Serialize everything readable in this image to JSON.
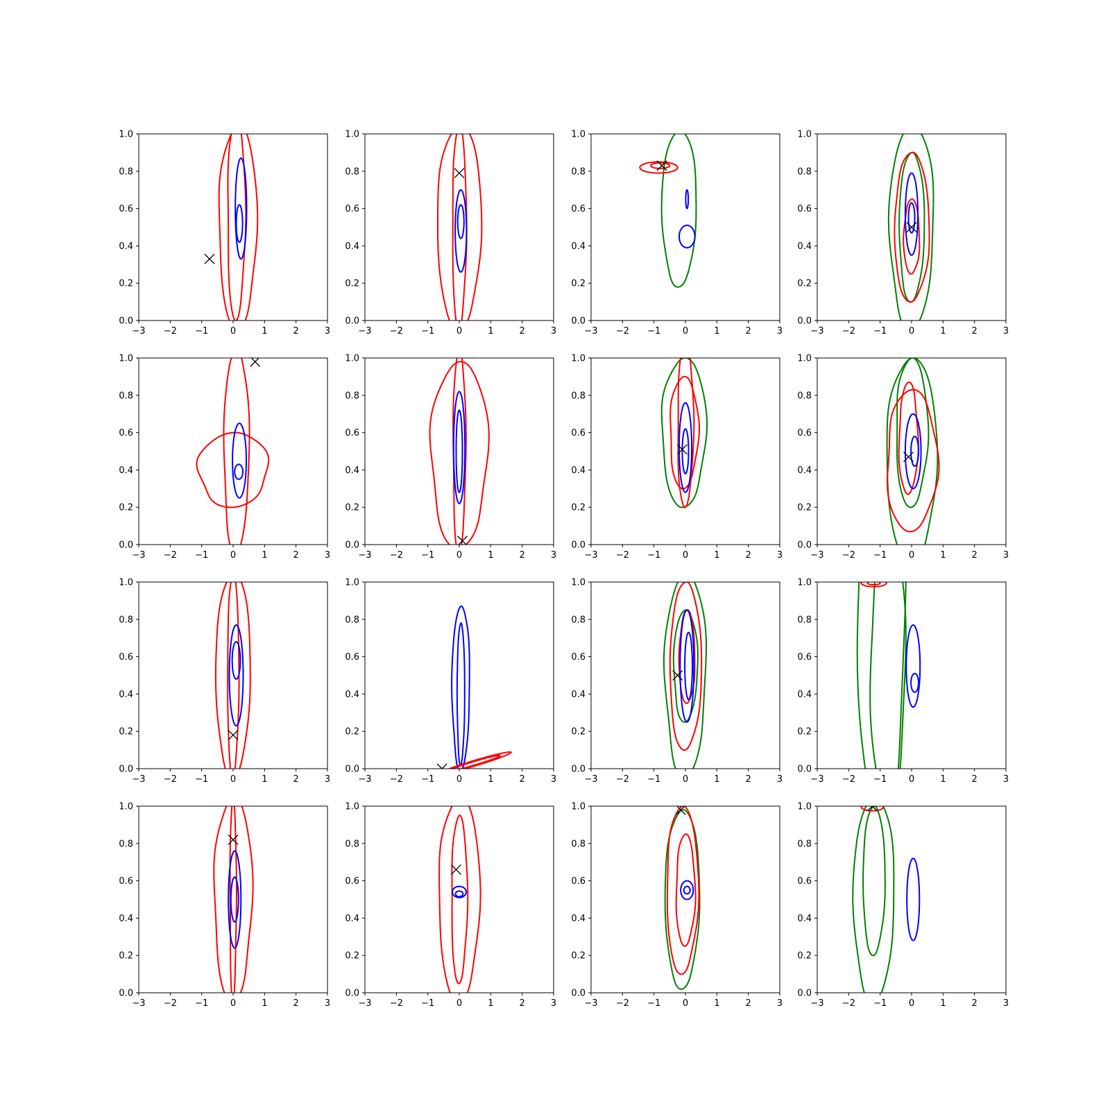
{
  "chart_data": {
    "type": "contour-grid",
    "rows": 4,
    "cols": 4,
    "shared_axes": {
      "xlim": [
        -3,
        3
      ],
      "ylim": [
        0,
        1.0
      ],
      "xticks": [
        -3,
        -2,
        -1,
        0,
        1,
        2,
        3
      ],
      "xtick_labels": [
        "−3",
        "−2",
        "−1",
        "0",
        "1",
        "2",
        "3"
      ],
      "yticks": [
        0,
        0.2,
        0.4,
        0.6,
        0.8,
        1.0
      ],
      "ytick_labels": [
        "0.0",
        "0.2",
        "0.4",
        "0.6",
        "0.8",
        "1.0"
      ]
    },
    "colors": {
      "blue": "#0000ff",
      "red": "#ff0000",
      "green": "#008000",
      "marker": "#000000"
    },
    "panels": [
      {
        "id": "r1c1",
        "marker": {
          "x": -0.75,
          "y": 0.33
        },
        "contours": [
          {
            "color": "red",
            "shape": "blob",
            "cx": 0.15,
            "cy": 0.5,
            "rx": 0.6,
            "ry": 0.55
          },
          {
            "color": "red",
            "shape": "blob",
            "cx": 0.1,
            "cy": 0.55,
            "rx": 0.28,
            "ry": 0.55
          },
          {
            "color": "blue",
            "shape": "ellipse",
            "cx": 0.25,
            "cy": 0.6,
            "rx": 0.18,
            "ry": 0.27
          },
          {
            "color": "blue",
            "shape": "ellipse",
            "cx": 0.2,
            "cy": 0.52,
            "rx": 0.1,
            "ry": 0.1
          }
        ]
      },
      {
        "id": "r1c2",
        "marker": {
          "x": 0.0,
          "y": 0.79
        },
        "contours": [
          {
            "color": "red",
            "shape": "blob",
            "cx": 0.0,
            "cy": 0.5,
            "rx": 0.7,
            "ry": 0.55
          },
          {
            "color": "red",
            "shape": "blob",
            "cx": 0.0,
            "cy": 0.5,
            "rx": 0.22,
            "ry": 0.55
          },
          {
            "color": "blue",
            "shape": "ellipse",
            "cx": 0.05,
            "cy": 0.48,
            "rx": 0.18,
            "ry": 0.22
          },
          {
            "color": "blue",
            "shape": "ellipse",
            "cx": 0.05,
            "cy": 0.53,
            "rx": 0.1,
            "ry": 0.09
          }
        ]
      },
      {
        "id": "r1c3",
        "marker": {
          "x": -0.75,
          "y": 0.83
        },
        "contours": [
          {
            "color": "green",
            "shape": "blob",
            "cx": -0.2,
            "cy": 0.6,
            "rx": 0.55,
            "ry": 0.42
          },
          {
            "color": "red",
            "shape": "ellipse",
            "cx": -0.85,
            "cy": 0.82,
            "rx": 0.6,
            "ry": 0.03
          },
          {
            "color": "red",
            "shape": "ellipse",
            "cx": -0.8,
            "cy": 0.83,
            "rx": 0.3,
            "ry": 0.015
          },
          {
            "color": "blue",
            "shape": "ellipse",
            "cx": 0.05,
            "cy": 0.45,
            "rx": 0.25,
            "ry": 0.06
          },
          {
            "color": "blue",
            "shape": "ellipse",
            "cx": 0.05,
            "cy": 0.65,
            "rx": 0.04,
            "ry": 0.05
          }
        ]
      },
      {
        "id": "r1c4",
        "marker": {
          "x": 0.0,
          "y": 0.5
        },
        "contours": [
          {
            "color": "green",
            "shape": "blob",
            "cx": 0.0,
            "cy": 0.5,
            "rx": 0.7,
            "ry": 0.55
          },
          {
            "color": "green",
            "shape": "blob",
            "cx": 0.0,
            "cy": 0.5,
            "rx": 0.4,
            "ry": 0.4
          },
          {
            "color": "red",
            "shape": "blob",
            "cx": 0.0,
            "cy": 0.5,
            "rx": 0.55,
            "ry": 0.4
          },
          {
            "color": "red",
            "shape": "blob",
            "cx": 0.0,
            "cy": 0.45,
            "rx": 0.25,
            "ry": 0.2
          },
          {
            "color": "blue",
            "shape": "ellipse",
            "cx": 0.0,
            "cy": 0.57,
            "rx": 0.2,
            "ry": 0.22
          },
          {
            "color": "blue",
            "shape": "ellipse",
            "cx": 0.0,
            "cy": 0.55,
            "rx": 0.1,
            "ry": 0.08
          }
        ]
      },
      {
        "id": "r2c1",
        "marker": {
          "x": 0.7,
          "y": 0.98
        },
        "contours": [
          {
            "color": "red",
            "shape": "blob",
            "cx": 0.0,
            "cy": 0.4,
            "rx": 1.1,
            "ry": 0.2
          },
          {
            "color": "red",
            "shape": "blob",
            "cx": 0.1,
            "cy": 0.5,
            "rx": 0.4,
            "ry": 0.55
          },
          {
            "color": "blue",
            "shape": "ellipse",
            "cx": 0.2,
            "cy": 0.45,
            "rx": 0.22,
            "ry": 0.2
          },
          {
            "color": "blue",
            "shape": "ellipse",
            "cx": 0.18,
            "cy": 0.39,
            "rx": 0.13,
            "ry": 0.04
          }
        ]
      },
      {
        "id": "r2c2",
        "marker": {
          "x": 0.1,
          "y": 0.02
        },
        "contours": [
          {
            "color": "red",
            "shape": "blob",
            "cx": 0.0,
            "cy": 0.48,
            "rx": 0.9,
            "ry": 0.5
          },
          {
            "color": "red",
            "shape": "blob",
            "cx": 0.0,
            "cy": 0.5,
            "rx": 0.2,
            "ry": 0.55
          },
          {
            "color": "blue",
            "shape": "ellipse",
            "cx": 0.0,
            "cy": 0.52,
            "rx": 0.18,
            "ry": 0.3
          },
          {
            "color": "blue",
            "shape": "ellipse",
            "cx": 0.0,
            "cy": 0.5,
            "rx": 0.1,
            "ry": 0.22
          }
        ]
      },
      {
        "id": "r2c3",
        "marker": {
          "x": -0.1,
          "y": 0.51
        },
        "contours": [
          {
            "color": "green",
            "shape": "blob",
            "cx": -0.05,
            "cy": 0.6,
            "rx": 0.7,
            "ry": 0.4
          },
          {
            "color": "red",
            "shape": "blob",
            "cx": -0.05,
            "cy": 0.6,
            "rx": 0.45,
            "ry": 0.3
          },
          {
            "color": "red",
            "shape": "blob",
            "cx": 0.0,
            "cy": 0.65,
            "rx": 0.25,
            "ry": 0.45
          },
          {
            "color": "blue",
            "shape": "ellipse",
            "cx": 0.0,
            "cy": 0.52,
            "rx": 0.2,
            "ry": 0.24
          },
          {
            "color": "blue",
            "shape": "ellipse",
            "cx": 0.0,
            "cy": 0.5,
            "rx": 0.1,
            "ry": 0.12
          }
        ]
      },
      {
        "id": "r2c4",
        "marker": {
          "x": -0.1,
          "y": 0.47
        },
        "contours": [
          {
            "color": "green",
            "shape": "blob",
            "cx": 0.0,
            "cy": 0.45,
            "rx": 0.8,
            "ry": 0.55
          },
          {
            "color": "green",
            "shape": "blob",
            "cx": 0.0,
            "cy": 0.6,
            "rx": 0.5,
            "ry": 0.4
          },
          {
            "color": "red",
            "shape": "blob",
            "cx": 0.0,
            "cy": 0.45,
            "rx": 0.8,
            "ry": 0.38
          },
          {
            "color": "red",
            "shape": "blob",
            "cx": -0.1,
            "cy": 0.57,
            "rx": 0.3,
            "ry": 0.3
          },
          {
            "color": "blue",
            "shape": "ellipse",
            "cx": 0.05,
            "cy": 0.5,
            "rx": 0.25,
            "ry": 0.2
          },
          {
            "color": "blue",
            "shape": "ellipse",
            "cx": 0.1,
            "cy": 0.5,
            "rx": 0.12,
            "ry": 0.08
          }
        ]
      },
      {
        "id": "r3c1",
        "marker": {
          "x": 0.0,
          "y": 0.18
        },
        "contours": [
          {
            "color": "red",
            "shape": "blob",
            "cx": 0.0,
            "cy": 0.5,
            "rx": 0.55,
            "ry": 0.55
          },
          {
            "color": "red",
            "shape": "blob",
            "cx": 0.0,
            "cy": 0.5,
            "rx": 0.18,
            "ry": 0.55
          },
          {
            "color": "blue",
            "shape": "ellipse",
            "cx": 0.1,
            "cy": 0.5,
            "rx": 0.22,
            "ry": 0.27
          },
          {
            "color": "blue",
            "shape": "ellipse",
            "cx": 0.1,
            "cy": 0.58,
            "rx": 0.13,
            "ry": 0.1
          }
        ]
      },
      {
        "id": "r3c2",
        "marker": {
          "x": -0.55,
          "y": 0.0
        },
        "contours": [
          {
            "color": "blue",
            "shape": "blob",
            "cx": 0.05,
            "cy": 0.43,
            "rx": 0.28,
            "ry": 0.44
          },
          {
            "color": "blue",
            "shape": "blob",
            "cx": 0.05,
            "cy": 0.4,
            "rx": 0.12,
            "ry": 0.38
          },
          {
            "color": "red",
            "shape": "tilted",
            "cx": 0.5,
            "cy": 0.03,
            "rx": 1.15,
            "ry": 0.015,
            "tilt": -0.05
          },
          {
            "color": "red",
            "shape": "tilted",
            "cx": 0.5,
            "cy": 0.03,
            "rx": 0.8,
            "ry": 0.01,
            "tilt": -0.05
          }
        ]
      },
      {
        "id": "r3c3",
        "marker": {
          "x": -0.25,
          "y": 0.5
        },
        "contours": [
          {
            "color": "green",
            "shape": "blob",
            "cx": 0.0,
            "cy": 0.5,
            "rx": 0.65,
            "ry": 0.55
          },
          {
            "color": "green",
            "shape": "blob",
            "cx": 0.0,
            "cy": 0.55,
            "rx": 0.38,
            "ry": 0.3
          },
          {
            "color": "red",
            "shape": "blob",
            "cx": 0.0,
            "cy": 0.55,
            "rx": 0.5,
            "ry": 0.45
          },
          {
            "color": "red",
            "shape": "blob",
            "cx": 0.05,
            "cy": 0.6,
            "rx": 0.25,
            "ry": 0.25
          },
          {
            "color": "blue",
            "shape": "ellipse",
            "cx": 0.05,
            "cy": 0.55,
            "rx": 0.22,
            "ry": 0.3
          },
          {
            "color": "blue",
            "shape": "ellipse",
            "cx": 0.1,
            "cy": 0.55,
            "rx": 0.12,
            "ry": 0.18
          }
        ]
      },
      {
        "id": "r3c4",
        "marker": null,
        "contours": [
          {
            "color": "green",
            "shape": "arch",
            "cx": -0.95,
            "cy": 0.87,
            "rx": 0.75,
            "ry": 0.87
          },
          {
            "color": "green",
            "shape": "arch",
            "cx": -0.75,
            "cy": 0.55,
            "rx": 0.55,
            "ry": 0.55
          },
          {
            "color": "red",
            "shape": "ellipse",
            "cx": -1.2,
            "cy": 0.995,
            "rx": 0.4,
            "ry": 0.02
          },
          {
            "color": "red",
            "shape": "ellipse",
            "cx": -1.2,
            "cy": 0.995,
            "rx": 0.2,
            "ry": 0.01
          },
          {
            "color": "blue",
            "shape": "ellipse",
            "cx": 0.05,
            "cy": 0.55,
            "rx": 0.22,
            "ry": 0.22
          },
          {
            "color": "blue",
            "shape": "ellipse",
            "cx": 0.1,
            "cy": 0.46,
            "rx": 0.12,
            "ry": 0.05
          }
        ]
      },
      {
        "id": "r4c1",
        "marker": {
          "x": 0.0,
          "y": 0.82
        },
        "contours": [
          {
            "color": "red",
            "shape": "blob",
            "cx": 0.0,
            "cy": 0.5,
            "rx": 0.6,
            "ry": 0.55
          },
          {
            "color": "red",
            "shape": "blob",
            "cx": 0.0,
            "cy": 0.5,
            "rx": 0.1,
            "ry": 0.55
          },
          {
            "color": "blue",
            "shape": "ellipse",
            "cx": 0.05,
            "cy": 0.5,
            "rx": 0.2,
            "ry": 0.26
          },
          {
            "color": "blue",
            "shape": "ellipse",
            "cx": 0.05,
            "cy": 0.5,
            "rx": 0.12,
            "ry": 0.12
          }
        ]
      },
      {
        "id": "r4c2",
        "marker": {
          "x": -0.1,
          "y": 0.66
        },
        "contours": [
          {
            "color": "red",
            "shape": "blob",
            "cx": 0.0,
            "cy": 0.5,
            "rx": 0.65,
            "ry": 0.55
          },
          {
            "color": "red",
            "shape": "blob",
            "cx": 0.0,
            "cy": 0.5,
            "rx": 0.25,
            "ry": 0.45
          },
          {
            "color": "blue",
            "shape": "ellipse",
            "cx": 0.0,
            "cy": 0.54,
            "rx": 0.22,
            "ry": 0.03
          },
          {
            "color": "blue",
            "shape": "ellipse",
            "cx": 0.0,
            "cy": 0.53,
            "rx": 0.12,
            "ry": 0.015
          }
        ]
      },
      {
        "id": "r4c3",
        "marker": {
          "x": -0.15,
          "y": 0.98
        },
        "contours": [
          {
            "color": "green",
            "shape": "blob",
            "cx": -0.1,
            "cy": 0.5,
            "rx": 0.55,
            "ry": 0.48
          },
          {
            "color": "red",
            "shape": "blob",
            "cx": -0.1,
            "cy": 0.55,
            "rx": 0.5,
            "ry": 0.45
          },
          {
            "color": "red",
            "shape": "blob",
            "cx": 0.0,
            "cy": 0.55,
            "rx": 0.3,
            "ry": 0.3
          },
          {
            "color": "blue",
            "shape": "ellipse",
            "cx": 0.05,
            "cy": 0.55,
            "rx": 0.2,
            "ry": 0.05
          },
          {
            "color": "blue",
            "shape": "ellipse",
            "cx": 0.05,
            "cy": 0.55,
            "rx": 0.1,
            "ry": 0.02
          }
        ]
      },
      {
        "id": "r4c4",
        "marker": {
          "x": -1.25,
          "y": 1.0
        },
        "contours": [
          {
            "color": "green",
            "shape": "blob",
            "cx": -1.2,
            "cy": 0.5,
            "rx": 0.65,
            "ry": 0.55
          },
          {
            "color": "green",
            "shape": "blob",
            "cx": -1.2,
            "cy": 0.6,
            "rx": 0.35,
            "ry": 0.4
          },
          {
            "color": "red",
            "shape": "ellipse",
            "cx": -1.25,
            "cy": 0.995,
            "rx": 0.35,
            "ry": 0.02
          },
          {
            "color": "blue",
            "shape": "ellipse",
            "cx": 0.05,
            "cy": 0.5,
            "rx": 0.2,
            "ry": 0.22
          }
        ]
      }
    ]
  }
}
